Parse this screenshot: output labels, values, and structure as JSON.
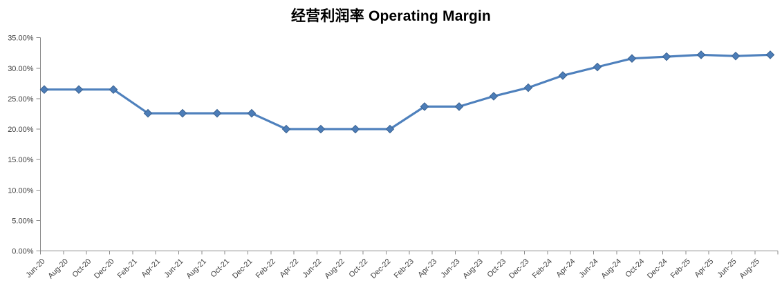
{
  "title": "经营利润率 Operating Margin",
  "chart_data": {
    "type": "line",
    "title": "经营利润率 Operating Margin",
    "xlabel": "",
    "ylabel": "",
    "grid": false,
    "legend": "none",
    "marker": "diamond",
    "ylim": [
      0,
      35
    ],
    "y_tick_step": 5,
    "y_tick_labels": [
      "35.00%",
      "30.00%",
      "25.00%",
      "20.00%",
      "15.00%",
      "10.00%",
      "5.00%",
      "0.00%"
    ],
    "x_tick_labels": [
      "Jun-20",
      "Aug-20",
      "Oct-20",
      "Dec-20",
      "Feb-21",
      "Apr-21",
      "Jun-21",
      "Aug-21",
      "Oct-21",
      "Dec-21",
      "Feb-22",
      "Apr-22",
      "Jun-22",
      "Aug-22",
      "Oct-22",
      "Dec-22",
      "Feb-23",
      "Apr-23",
      "Jun-23",
      "Aug-23",
      "Oct-23",
      "Dec-23",
      "Feb-24",
      "Apr-24",
      "Jun-24",
      "Aug-24",
      "Oct-24",
      "Dec-24",
      "Feb-25",
      "Apr-25",
      "Jun-25",
      "Aug-25"
    ],
    "series": [
      {
        "name": "Operating Margin",
        "x": [
          "Jun-20",
          "Sep-20",
          "Dec-20",
          "Mar-21",
          "Jun-21",
          "Sep-21",
          "Dec-21",
          "Mar-22",
          "Jun-22",
          "Sep-22",
          "Dec-22",
          "Mar-23",
          "Jun-23",
          "Sep-23",
          "Dec-23",
          "Mar-24",
          "Jun-24",
          "Sep-24",
          "Dec-24",
          "Mar-25",
          "Jun-25",
          "Sep-25"
        ],
        "values": [
          26.5,
          26.5,
          26.5,
          22.6,
          22.6,
          22.6,
          22.6,
          20.0,
          20.0,
          20.0,
          20.0,
          23.7,
          23.7,
          25.4,
          26.8,
          28.8,
          30.2,
          31.6,
          31.9,
          32.2,
          32.0,
          32.2
        ]
      }
    ],
    "colors": {
      "line": "#4F81BD",
      "marker_fill": "#4C7DB8",
      "marker_edge": "#3A6291",
      "axis": "#898989",
      "tick_text": "#3F3F3F",
      "title_text": "#000000",
      "background": "#FFFFFF"
    }
  }
}
